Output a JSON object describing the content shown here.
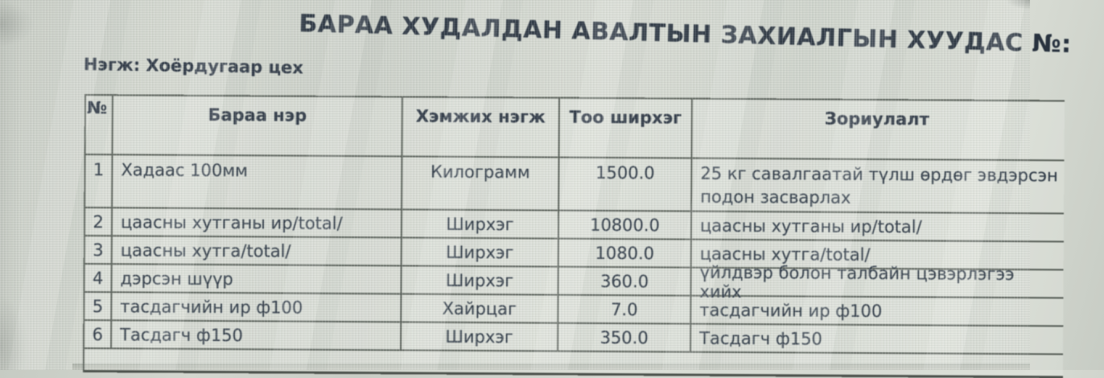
{
  "page": {
    "title": "БАРАА ХУДАЛДАН АВАЛТЫН ЗАХИАЛГЫН ХУУДАС №:",
    "unit_label": "Нэгж: Хоёрдугаар цех"
  },
  "table": {
    "headers": [
      "№",
      "Бараа нэр",
      "Хэмжих нэгж",
      "Тоо ширхэг",
      "Зориулалт"
    ],
    "rows": [
      {
        "no": "1",
        "name": "Хадаас 100мм",
        "unit": "Килограмм",
        "qty": "1500.0",
        "purpose": "25 кг савалгаатай түлш өрдөг эвдэрсэн\nподон засварлах"
      },
      {
        "no": "2",
        "name": "цаасны хутганы ир/total/",
        "unit": "Ширхэг",
        "qty": "10800.0",
        "purpose": "цаасны хутганы ир/total/"
      },
      {
        "no": "3",
        "name": "цаасны хутга/total/",
        "unit": "Ширхэг",
        "qty": "1080.0",
        "purpose": "цаасны хутга/total/"
      },
      {
        "no": "4",
        "name": "дэрсэн шүүр",
        "unit": "Ширхэг",
        "qty": "360.0",
        "purpose": "үйлдвэр болон талбайн цэвэрлэгээ хийх"
      },
      {
        "no": "5",
        "name": "тасдагчийн ир ф100",
        "unit": "Хайрцаг",
        "qty": "7.0",
        "purpose": "тасдагчийн ир ф100"
      },
      {
        "no": "6",
        "name": "Тасдагч ф150",
        "unit": "Ширхэг",
        "qty": "350.0",
        "purpose": "Тасдагч ф150"
      }
    ]
  },
  "colors": {
    "page_background": "#cdd2ca",
    "text": "#2e3945",
    "title_text": "#29333f",
    "table_border": "#565d56",
    "bottom_rule": "#4c524c"
  }
}
